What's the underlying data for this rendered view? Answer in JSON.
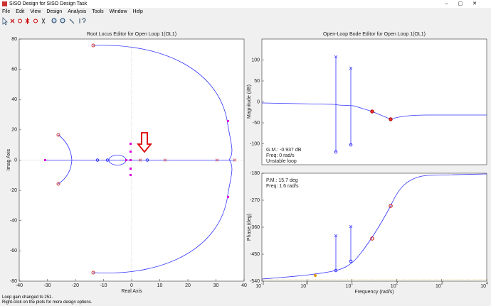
{
  "window": {
    "title": "SISO Design for SISO Design Task"
  },
  "menu": [
    "File",
    "Edit",
    "View",
    "Design",
    "Analysis",
    "Tools",
    "Window",
    "Help"
  ],
  "root_locus": {
    "title": "Root Locus Editor for Open Loop 1(OL1)",
    "xlabel": "Real Axis",
    "ylabel": "Imag Axis",
    "xlim": [
      -40,
      40
    ],
    "xticks": [
      -40,
      -30,
      -20,
      -10,
      0,
      10,
      20,
      30,
      40
    ],
    "ylim": [
      -80,
      80
    ],
    "yticks": [
      -80,
      -60,
      -40,
      -20,
      0,
      20,
      40,
      60,
      80
    ]
  },
  "bode_mag": {
    "title": "Open-Loop Bode Editor for Open Loop 1(OL1)",
    "ylabel": "Magnitude (dB)",
    "ylim": [
      -150,
      150
    ],
    "yticks": [
      -100,
      -50,
      0,
      50,
      100
    ],
    "annotations": [
      "G.M.: -0.937 dB",
      "Freq: 0 rad/s",
      "Unstable loop"
    ]
  },
  "bode_phase": {
    "ylabel": "Phase (deg)",
    "xlabel": "Frequency (rad/s)",
    "ylim": [
      -540,
      -180
    ],
    "yticks": [
      -540,
      -450,
      -360,
      -270,
      -180
    ],
    "xlim": [
      0.1,
      10000
    ],
    "xticks": [
      {
        "value": 0.1,
        "base": "10",
        "exp": "-1"
      },
      {
        "value": 1,
        "base": "10",
        "exp": "0"
      },
      {
        "value": 10,
        "base": "10",
        "exp": "1"
      },
      {
        "value": 100,
        "base": "10",
        "exp": "2"
      },
      {
        "value": 1000,
        "base": "10",
        "exp": "3"
      },
      {
        "value": 10000,
        "base": "10",
        "exp": "4"
      }
    ],
    "annotations": [
      "P.M.: 15.7 deg",
      "Freq: 1.6 rad/s"
    ]
  },
  "status": [
    "Loop gain changed to 251.",
    "Right-click on the plots for more design options."
  ]
}
